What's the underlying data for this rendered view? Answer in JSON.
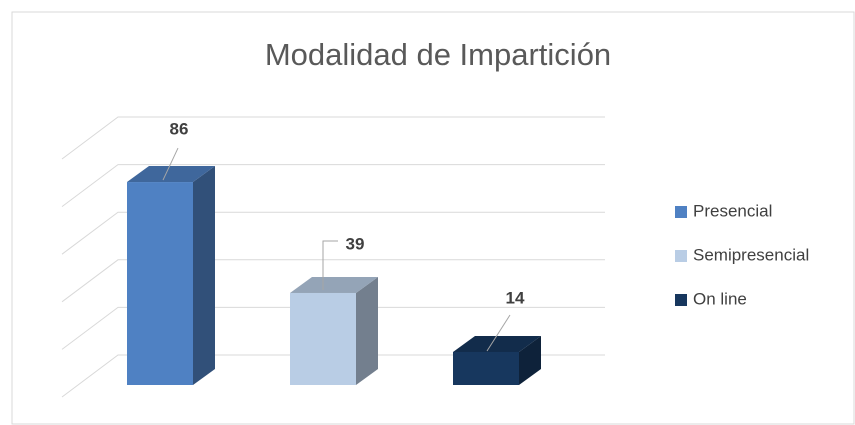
{
  "chart_data": {
    "type": "bar3d",
    "title": "Modalidad de Impartición",
    "categories": [
      "Presencial",
      "Semipresencial",
      "On line"
    ],
    "values": [
      86,
      39,
      14
    ],
    "colors": [
      "#4f81c3",
      "#b9cde5",
      "#17375e"
    ],
    "ylim": [
      0,
      100
    ],
    "yticks": [
      0,
      20,
      40,
      60,
      80,
      100
    ],
    "grid": true,
    "legend": "right"
  }
}
